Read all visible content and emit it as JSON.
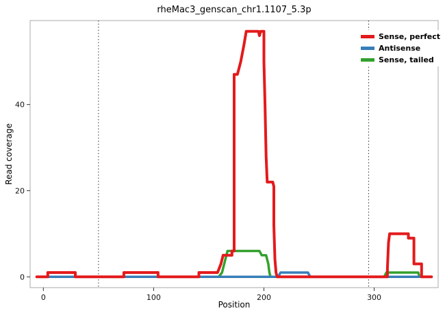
{
  "chart_data": {
    "type": "line",
    "title": "rheMac3_genscan_chr1.1107_5.3p",
    "xlabel": "Position",
    "ylabel": "Read coverage",
    "xlim": [
      -12,
      358
    ],
    "ylim": [
      -2.5,
      59.5
    ],
    "xticks": [
      0,
      100,
      200,
      300
    ],
    "yticks": [
      0,
      20,
      40
    ],
    "vlines": [
      50,
      295
    ],
    "grid": false,
    "legend_position": "top-right",
    "series": [
      {
        "name": "Sense, perfect",
        "color": "#e31a1c",
        "stroke_width": 4,
        "points": [
          [
            -6,
            0
          ],
          [
            4,
            0
          ],
          [
            4,
            1
          ],
          [
            29,
            1
          ],
          [
            29,
            0
          ],
          [
            73,
            0
          ],
          [
            73,
            1
          ],
          [
            104,
            1
          ],
          [
            104,
            0
          ],
          [
            141,
            0
          ],
          [
            141,
            1
          ],
          [
            158,
            1
          ],
          [
            161,
            3
          ],
          [
            163,
            5
          ],
          [
            171,
            5
          ],
          [
            171,
            6
          ],
          [
            173,
            6
          ],
          [
            173,
            47
          ],
          [
            176,
            47
          ],
          [
            179,
            50
          ],
          [
            182,
            54
          ],
          [
            184,
            57
          ],
          [
            195,
            57
          ],
          [
            196,
            56
          ],
          [
            197,
            57
          ],
          [
            200,
            57
          ],
          [
            200,
            50
          ],
          [
            201,
            40
          ],
          [
            202,
            28
          ],
          [
            203,
            22
          ],
          [
            208,
            22
          ],
          [
            209,
            21
          ],
          [
            209,
            12
          ],
          [
            210,
            4
          ],
          [
            211,
            1
          ],
          [
            212,
            0
          ],
          [
            310,
            0
          ],
          [
            312,
            0
          ],
          [
            312,
            2
          ],
          [
            313,
            8
          ],
          [
            314,
            10
          ],
          [
            331,
            10
          ],
          [
            331,
            9
          ],
          [
            336,
            9
          ],
          [
            336,
            3
          ],
          [
            342,
            3
          ],
          [
            343,
            3
          ],
          [
            343,
            0
          ],
          [
            352,
            0
          ]
        ]
      },
      {
        "name": "Antisense",
        "color": "#377eb8",
        "stroke_width": 3.5,
        "points": [
          [
            -6,
            0
          ],
          [
            213,
            0
          ],
          [
            215,
            1
          ],
          [
            240,
            1
          ],
          [
            242,
            0
          ],
          [
            352,
            0
          ]
        ]
      },
      {
        "name": "Sense, tailed",
        "color": "#33a02c",
        "stroke_width": 3.5,
        "points": [
          [
            -6,
            0
          ],
          [
            159,
            0
          ],
          [
            162,
            1
          ],
          [
            164,
            3
          ],
          [
            166,
            5
          ],
          [
            167,
            6
          ],
          [
            196,
            6
          ],
          [
            198,
            5
          ],
          [
            202,
            5
          ],
          [
            204,
            3
          ],
          [
            205,
            1
          ],
          [
            206,
            0
          ],
          [
            309,
            0
          ],
          [
            311,
            1
          ],
          [
            340,
            1
          ],
          [
            341,
            0
          ],
          [
            352,
            0
          ]
        ]
      }
    ]
  }
}
